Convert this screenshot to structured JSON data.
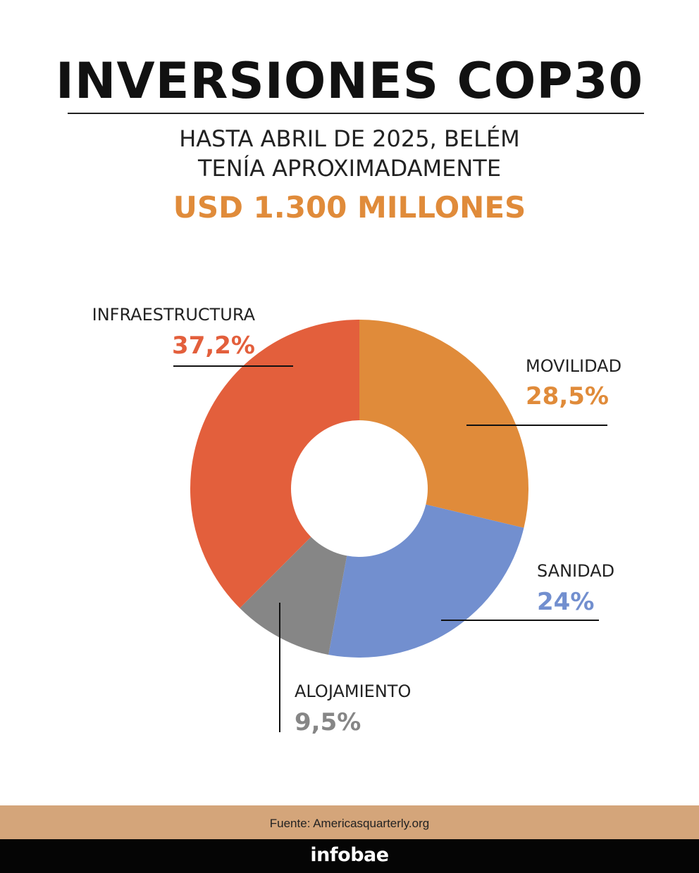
{
  "header": {
    "title": "INVERSIONES COP30",
    "subtitle_line1": "HASTA ABRIL DE 2025, BELÉM",
    "subtitle_line2": "TENÍA APROXIMADAMENTE",
    "highlight": "USD 1.300 MILLONES"
  },
  "chart_data": {
    "type": "pie",
    "style": "donut",
    "categories": [
      "MOVILIDAD",
      "SANIDAD",
      "ALOJAMIENTO",
      "INFRAESTRUCTURA"
    ],
    "values": [
      28.5,
      24,
      9.5,
      37.2
    ],
    "value_labels": [
      "28,5%",
      "24%",
      "9,5%",
      "37,2%"
    ],
    "colors": [
      "#e08b3a",
      "#728fcf",
      "#868686",
      "#e35f3c"
    ],
    "legend": "none"
  },
  "footer": {
    "source": "Fuente: Americasquarterly.org",
    "brand": "infobae"
  }
}
